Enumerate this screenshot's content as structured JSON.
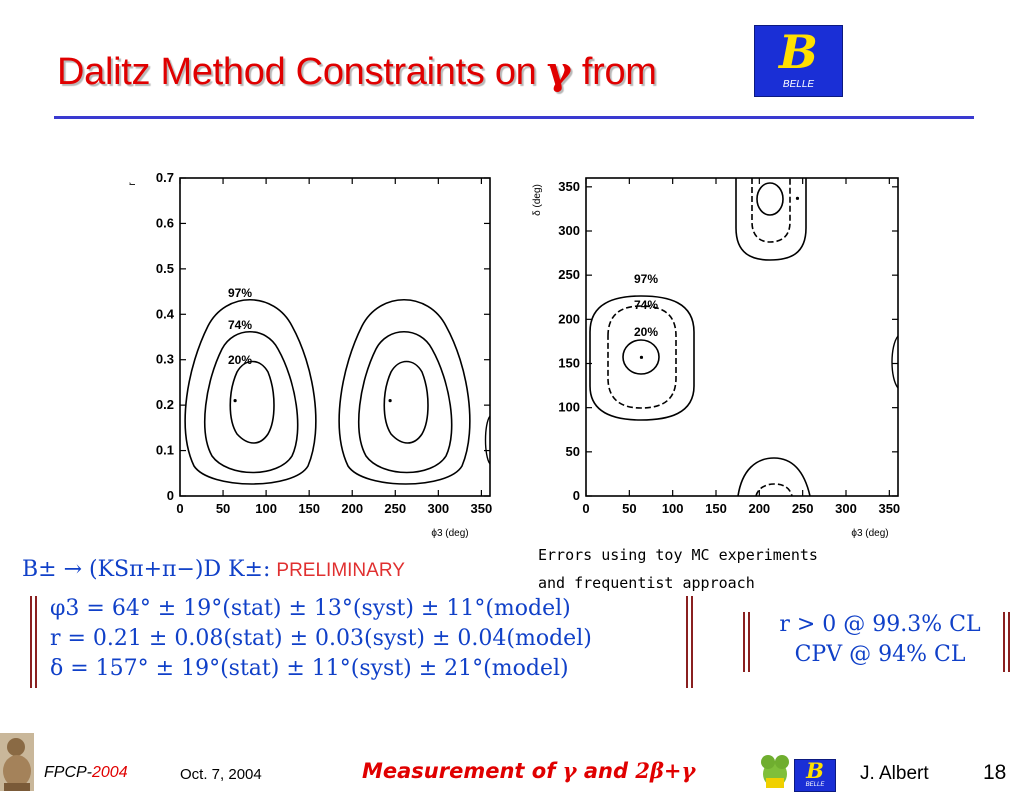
{
  "title": {
    "text": "Dalitz Method Constraints on",
    "symbol": "γ",
    "tail": "from"
  },
  "belle_logo": {
    "letter": "B",
    "label": "BELLE"
  },
  "plots": [
    {
      "type": "contour",
      "xlabel": "ϕ3 (deg)",
      "ylabel": "r",
      "xticks": [
        "0",
        "50",
        "100",
        "150",
        "200",
        "250",
        "300",
        "350"
      ],
      "yticks": [
        "0",
        "0.1",
        "0.2",
        "0.3",
        "0.4",
        "0.5",
        "0.6",
        "0.7"
      ],
      "xlim": [
        0,
        360
      ],
      "ylim": [
        0,
        0.7
      ],
      "contour_labels": [
        "97%",
        "74%",
        "20%"
      ],
      "best_fit": [
        [
          64,
          0.21
        ],
        [
          244,
          0.21
        ]
      ]
    },
    {
      "type": "contour",
      "xlabel": "ϕ3 (deg)",
      "ylabel": "δ (deg)",
      "xticks": [
        "0",
        "50",
        "100",
        "150",
        "200",
        "250",
        "300",
        "350"
      ],
      "yticks": [
        "0",
        "50",
        "100",
        "150",
        "200",
        "250",
        "300",
        "350"
      ],
      "xlim": [
        0,
        360
      ],
      "ylim": [
        0,
        360
      ],
      "contour_labels": [
        "97%",
        "74%",
        "20%"
      ],
      "best_fit": [
        [
          64,
          157
        ],
        [
          244,
          337
        ]
      ]
    }
  ],
  "note": {
    "line1": "Errors using toy MC experiments",
    "line2": "and frequentist approach"
  },
  "decay": {
    "formula": "B± → (KSπ+π−)D K±:",
    "status": "PRELIMINARY"
  },
  "results": [
    "φ3 = 64° ± 19°(stat) ± 13°(syst) ± 11°(model)",
    "r = 0.21 ± 0.08(stat) ± 0.03(syst) ± 0.04(model)",
    "δ = 157° ± 19°(stat) ± 11°(syst) ± 21°(model)"
  ],
  "cl": [
    "r > 0 @ 99.3% CL",
    "CPV @ 94% CL"
  ],
  "footer": {
    "conf": "FPCP-",
    "year": "2004",
    "date": "Oct. 7, 2004",
    "talk_a": "Measurement of ",
    "gamma": "γ",
    "talk_b": " and ",
    "talk_c": "2β+γ",
    "author": "J. Albert",
    "page": "18"
  }
}
